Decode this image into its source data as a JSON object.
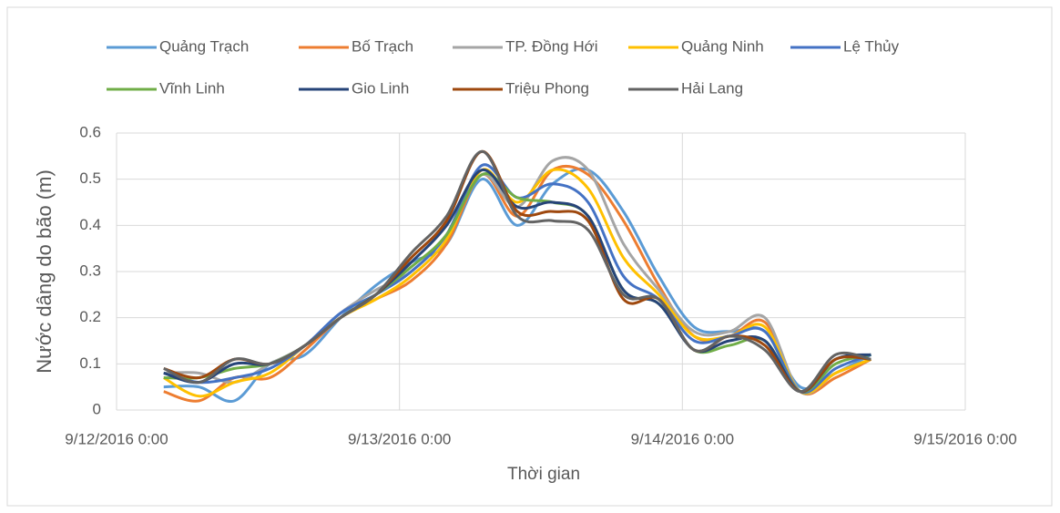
{
  "chart_data": {
    "type": "line",
    "y_label": "Nước dâng do bão (m)",
    "x_label": "Thời gian",
    "x": [
      "9/12/2016 4:00",
      "9/12/2016 7:00",
      "9/12/2016 10:00",
      "9/12/2016 13:00",
      "9/12/2016 16:00",
      "9/12/2016 19:00",
      "9/12/2016 22:00",
      "9/13/2016 1:00",
      "9/13/2016 4:00",
      "9/13/2016 7:00",
      "9/13/2016 10:00",
      "9/13/2016 13:00",
      "9/13/2016 16:00",
      "9/13/2016 19:00",
      "9/13/2016 22:00",
      "9/14/2016 1:00",
      "9/14/2016 4:00",
      "9/14/2016 7:00",
      "9/14/2016 10:00",
      "9/14/2016 13:00",
      "9/14/2016 16:00"
    ],
    "xlim": [
      "9/12/2016 0:00",
      "9/15/2016 0:00"
    ],
    "xticks": [
      "9/12/2016 0:00",
      "9/13/2016 0:00",
      "9/14/2016 0:00",
      "9/15/2016 0:00"
    ],
    "ylim": [
      0,
      0.6
    ],
    "yticks": [
      0,
      0.1,
      0.2,
      0.3,
      0.4,
      0.5,
      0.6
    ],
    "grid": true,
    "legend": "top",
    "series": [
      {
        "name": "Quảng Trạch",
        "color": "#5b9bd5",
        "values": [
          0.05,
          0.05,
          0.02,
          0.1,
          0.12,
          0.2,
          0.27,
          0.32,
          0.36,
          0.5,
          0.4,
          0.49,
          0.52,
          0.43,
          0.29,
          0.18,
          0.17,
          0.17,
          0.05,
          0.08,
          0.12
        ]
      },
      {
        "name": "Bố Trạch",
        "color": "#ed7d31",
        "values": [
          0.04,
          0.02,
          0.07,
          0.07,
          0.13,
          0.2,
          0.24,
          0.28,
          0.36,
          0.51,
          0.42,
          0.52,
          0.51,
          0.41,
          0.27,
          0.16,
          0.16,
          0.19,
          0.04,
          0.07,
          0.11
        ]
      },
      {
        "name": "TP. Đồng Hới",
        "color": "#a5a5a5",
        "values": [
          0.08,
          0.08,
          0.06,
          0.1,
          0.14,
          0.21,
          0.26,
          0.3,
          0.38,
          0.51,
          0.44,
          0.54,
          0.52,
          0.36,
          0.26,
          0.17,
          0.17,
          0.2,
          0.04,
          0.08,
          0.11
        ]
      },
      {
        "name": "Quảng Ninh",
        "color": "#ffc000",
        "values": [
          0.07,
          0.03,
          0.06,
          0.08,
          0.14,
          0.2,
          0.24,
          0.29,
          0.37,
          0.52,
          0.45,
          0.52,
          0.48,
          0.33,
          0.25,
          0.16,
          0.16,
          0.18,
          0.04,
          0.08,
          0.11
        ]
      },
      {
        "name": "Lệ Thủy",
        "color": "#4472c4",
        "values": [
          0.08,
          0.06,
          0.07,
          0.09,
          0.14,
          0.21,
          0.25,
          0.3,
          0.38,
          0.53,
          0.46,
          0.49,
          0.45,
          0.29,
          0.24,
          0.15,
          0.16,
          0.17,
          0.04,
          0.09,
          0.12
        ]
      },
      {
        "name": "Vĩnh Linh",
        "color": "#70ad47",
        "values": [
          0.07,
          0.07,
          0.09,
          0.1,
          0.14,
          0.2,
          0.25,
          0.31,
          0.38,
          0.51,
          0.46,
          0.45,
          0.42,
          0.26,
          0.23,
          0.13,
          0.14,
          0.15,
          0.04,
          0.1,
          0.12
        ]
      },
      {
        "name": "Gio Linh",
        "color": "#264478",
        "values": [
          0.08,
          0.06,
          0.1,
          0.1,
          0.14,
          0.2,
          0.25,
          0.32,
          0.4,
          0.52,
          0.44,
          0.45,
          0.42,
          0.26,
          0.23,
          0.13,
          0.15,
          0.15,
          0.04,
          0.11,
          0.12
        ]
      },
      {
        "name": "Triệu Phong",
        "color": "#9e480e",
        "values": [
          0.09,
          0.07,
          0.11,
          0.1,
          0.14,
          0.2,
          0.25,
          0.33,
          0.41,
          0.56,
          0.43,
          0.43,
          0.41,
          0.24,
          0.24,
          0.13,
          0.16,
          0.14,
          0.04,
          0.11,
          0.11
        ]
      },
      {
        "name": "Hải Lang",
        "color": "#636363",
        "values": [
          0.09,
          0.06,
          0.11,
          0.1,
          0.14,
          0.2,
          0.25,
          0.34,
          0.42,
          0.56,
          0.42,
          0.41,
          0.39,
          0.25,
          0.24,
          0.13,
          0.16,
          0.13,
          0.04,
          0.12,
          0.11
        ]
      }
    ]
  }
}
